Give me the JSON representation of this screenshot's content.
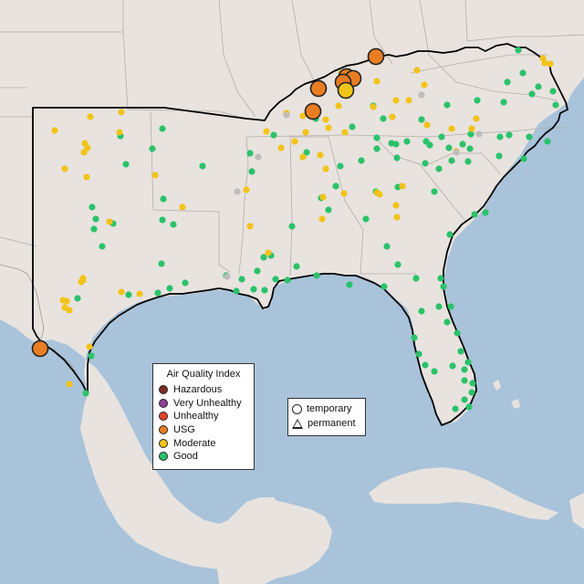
{
  "legend_aqi": {
    "title": "Air Quality Index",
    "items": [
      {
        "label": "Hazardous",
        "color": "#7e2a24"
      },
      {
        "label": "Very Unhealthy",
        "color": "#8f3f97"
      },
      {
        "label": "Unhealthy",
        "color": "#e8412b"
      },
      {
        "label": "USG",
        "color": "#e97d22"
      },
      {
        "label": "Moderate",
        "color": "#f2c318"
      },
      {
        "label": "Good",
        "color": "#2bc26a"
      }
    ]
  },
  "legend_monitor": {
    "items": [
      {
        "label": "temporary",
        "shape": "circle"
      },
      {
        "label": "permanent",
        "shape": "triangle"
      }
    ]
  },
  "colors": {
    "water": "#a9c3da",
    "land": "#e8e3df",
    "land_outside": "#efebe7",
    "no_data": "#bdbdbd"
  }
}
